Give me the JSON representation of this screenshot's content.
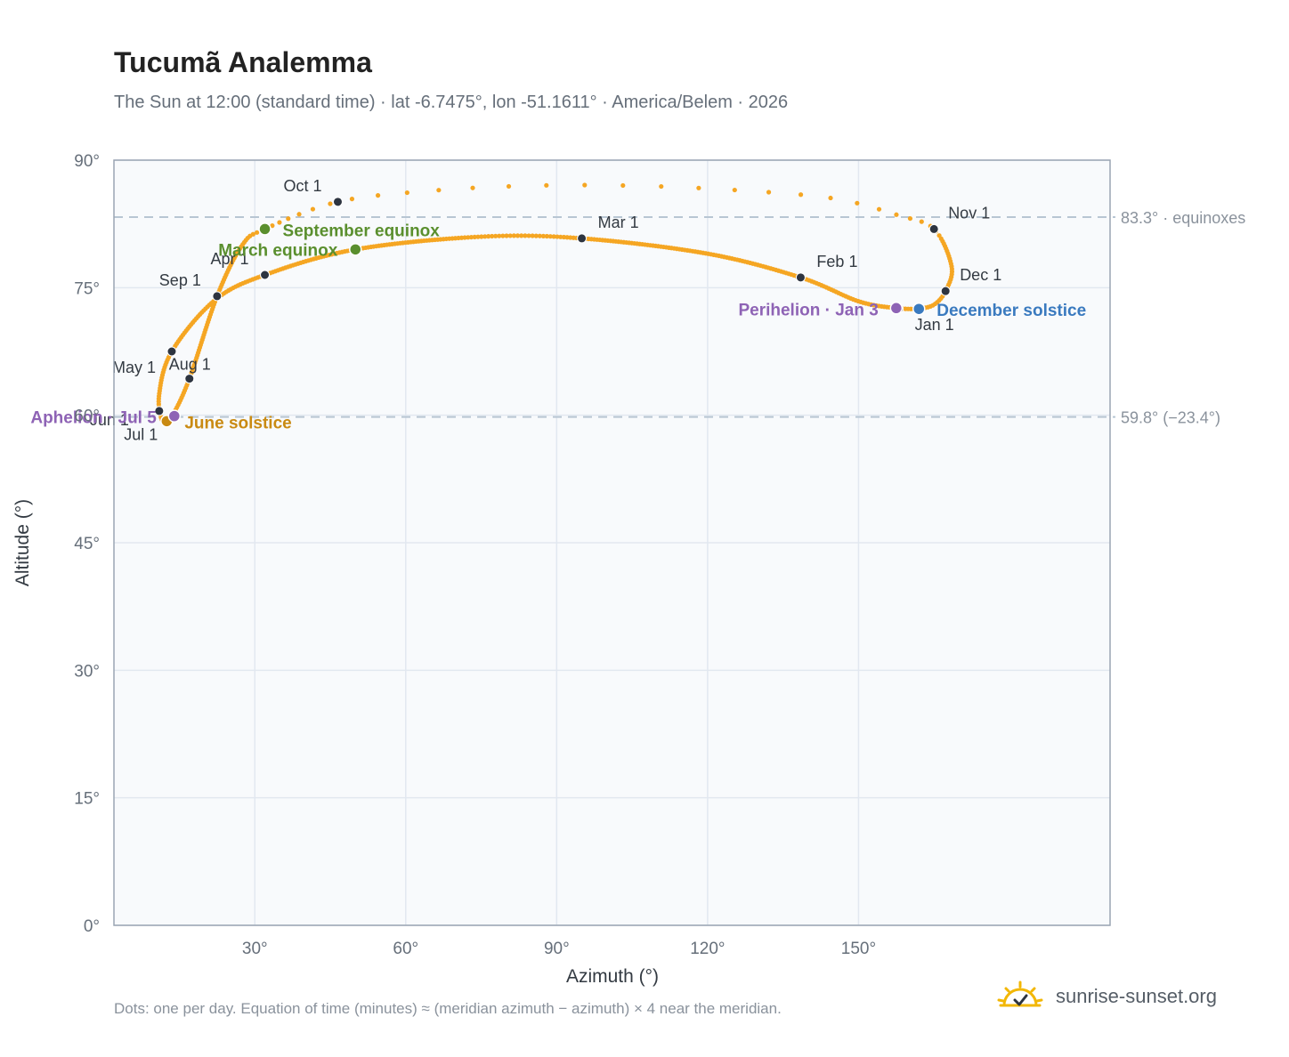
{
  "header": {
    "title": "Tucumã Analemma",
    "subtitle": "The Sun at 12:00 (standard time) · lat -6.7475°, lon -51.1611° · America/Belem · 2026"
  },
  "footer": {
    "note": "Dots: one per day. Equation of time (minutes) ≈ (meridian azimuth − azimuth) × 4 near the meridian.",
    "brand": "sunrise-sunset.org"
  },
  "colors": {
    "path": "#f5a623",
    "month_marker": "#2d3440",
    "equinox": "#5a8f2e",
    "june_solstice": "#c98a12",
    "december_solstice": "#3a7abf",
    "apsis": "#8e63b5",
    "plot_bg": "#f8fafc",
    "grid": "#e2e8f0",
    "reference_line": "#b8c6d3"
  },
  "chart_data": {
    "type": "scatter",
    "xlabel": "Azimuth (°)",
    "ylabel": "Altitude (°)",
    "xlim": [
      2,
      200
    ],
    "ylim": [
      0,
      90
    ],
    "xticks": [
      30,
      60,
      90,
      120,
      150
    ],
    "xtick_labels": [
      "30°",
      "60°",
      "90°",
      "120°",
      "150°"
    ],
    "yticks": [
      0,
      15,
      30,
      45,
      60,
      75,
      90
    ],
    "ytick_labels": [
      "0°",
      "15°",
      "30°",
      "45°",
      "60°",
      "75°",
      "90°"
    ],
    "grid": true,
    "reference_lines": [
      {
        "y": 83.3,
        "label": "83.3° · equinoxes"
      },
      {
        "y": 59.8,
        "label": "59.8° (−23.4°)"
      }
    ],
    "path_anchors": [
      {
        "azimuth": 162.0,
        "altitude": 72.5
      },
      {
        "azimuth": 157.5,
        "altitude": 72.6
      },
      {
        "azimuth": 150.0,
        "altitude": 73.4
      },
      {
        "azimuth": 138.5,
        "altitude": 76.2
      },
      {
        "azimuth": 120.0,
        "altitude": 79.0
      },
      {
        "azimuth": 95.0,
        "altitude": 80.8
      },
      {
        "azimuth": 75.0,
        "altitude": 81.0
      },
      {
        "azimuth": 50.0,
        "altitude": 79.5
      },
      {
        "azimuth": 32.0,
        "altitude": 76.5
      },
      {
        "azimuth": 22.0,
        "altitude": 73.5
      },
      {
        "azimuth": 13.5,
        "altitude": 67.5
      },
      {
        "azimuth": 11.0,
        "altitude": 62.5
      },
      {
        "azimuth": 11.6,
        "altitude": 59.4
      },
      {
        "azimuth": 13.5,
        "altitude": 59.9
      },
      {
        "azimuth": 17.0,
        "altitude": 64.3
      },
      {
        "azimuth": 22.5,
        "altitude": 74.0
      },
      {
        "azimuth": 27.5,
        "altitude": 80.0
      },
      {
        "azimuth": 32.0,
        "altitude": 81.9
      },
      {
        "azimuth": 46.5,
        "altitude": 85.1
      },
      {
        "azimuth": 65.0,
        "altitude": 86.4
      },
      {
        "azimuth": 85.0,
        "altitude": 87.0
      },
      {
        "azimuth": 105.0,
        "altitude": 87.0
      },
      {
        "azimuth": 125.0,
        "altitude": 86.5
      },
      {
        "azimuth": 145.0,
        "altitude": 85.5
      },
      {
        "azimuth": 158.0,
        "altitude": 83.5
      },
      {
        "azimuth": 165.0,
        "altitude": 81.9
      },
      {
        "azimuth": 168.5,
        "altitude": 77.5
      },
      {
        "azimuth": 167.3,
        "altitude": 74.6
      },
      {
        "azimuth": 165.0,
        "altitude": 73.0
      },
      {
        "azimuth": 162.0,
        "altitude": 72.5
      }
    ],
    "month_markers": [
      {
        "label": "Jan 1",
        "azimuth": 158.0,
        "altitude": 72.5
      },
      {
        "label": "Feb 1",
        "azimuth": 138.5,
        "altitude": 76.2
      },
      {
        "label": "Mar 1",
        "azimuth": 95.0,
        "altitude": 80.8
      },
      {
        "label": "Apr 1",
        "azimuth": 32.0,
        "altitude": 76.5
      },
      {
        "label": "May 1",
        "azimuth": 13.5,
        "altitude": 67.5
      },
      {
        "label": "Jun 1",
        "azimuth": 11.0,
        "altitude": 60.5
      },
      {
        "label": "Jul 1",
        "azimuth": 12.5,
        "altitude": 59.4
      },
      {
        "label": "Aug 1",
        "azimuth": 17.0,
        "altitude": 64.3
      },
      {
        "label": "Sep 1",
        "azimuth": 22.5,
        "altitude": 74.0
      },
      {
        "label": "Oct 1",
        "azimuth": 46.5,
        "altitude": 85.1
      },
      {
        "label": "Nov 1",
        "azimuth": 165.0,
        "altitude": 81.9
      },
      {
        "label": "Dec 1",
        "azimuth": 167.3,
        "altitude": 74.6
      }
    ],
    "events": [
      {
        "label": "March equinox",
        "azimuth": 50.0,
        "altitude": 79.5,
        "color_key": "equinox"
      },
      {
        "label": "September equinox",
        "azimuth": 32.0,
        "altitude": 81.9,
        "color_key": "equinox"
      },
      {
        "label": "June solstice",
        "azimuth": 12.5,
        "altitude": 59.3,
        "color_key": "june_solstice"
      },
      {
        "label": "December solstice",
        "azimuth": 162.0,
        "altitude": 72.5,
        "color_key": "december_solstice"
      },
      {
        "label": "Perihelion · Jan 3",
        "azimuth": 157.5,
        "altitude": 72.6,
        "color_key": "apsis"
      },
      {
        "label": "Aphelion · Jul 5",
        "azimuth": 14.0,
        "altitude": 59.9,
        "color_key": "apsis"
      }
    ]
  }
}
